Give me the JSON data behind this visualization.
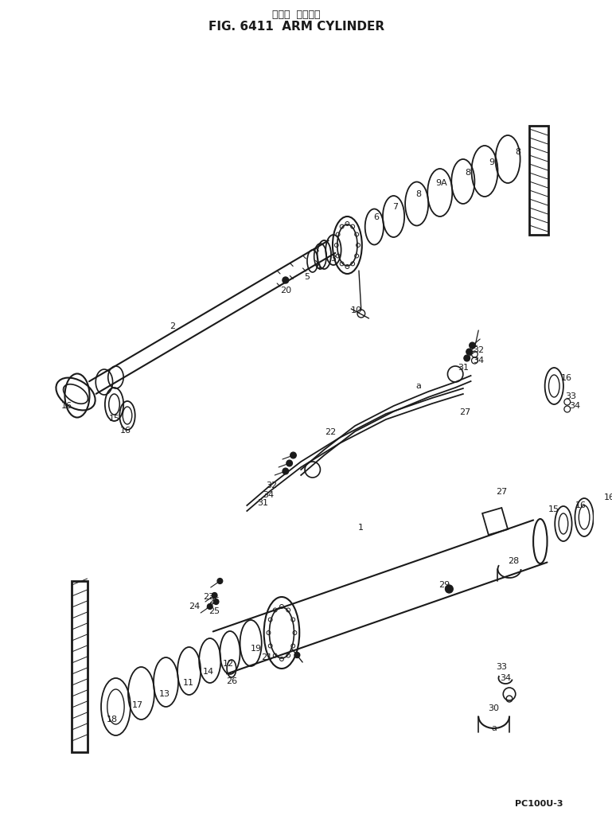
{
  "title_japanese": "アーム  シリンダ",
  "title_english": "FIG. 6411  ARM CYLINDER",
  "model": "PC100U-3",
  "bg_color": "#ffffff",
  "line_color": "#1a1a1a",
  "fig_width": 7.69,
  "fig_height": 10.29,
  "dpi": 100
}
